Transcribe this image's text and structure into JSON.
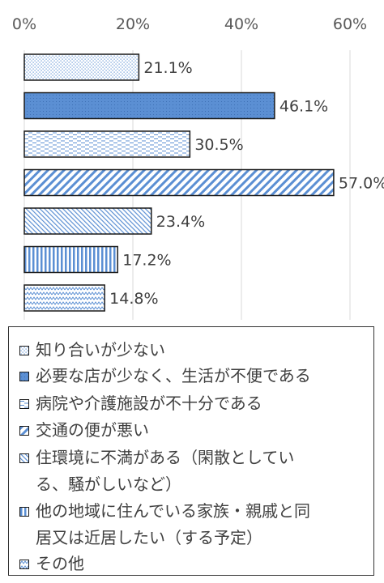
{
  "chart_data": {
    "type": "bar",
    "orientation": "horizontal",
    "x_ticks": [
      "0%",
      "20%",
      "40%",
      "60%"
    ],
    "xlim": [
      0,
      65
    ],
    "grid": true,
    "legend_position": "bottom",
    "categories": [
      "知り合いが少ない",
      "必要な店が少なく、生活が不便である",
      "病院や介護施設が不十分である",
      "交通の便が悪い",
      "住環境に不満がある（閑散としている、騒がしいなど）",
      "他の地域に住んでいる家族・親戚と同居又は近居したい（する予定）",
      "その他"
    ],
    "values": [
      21.1,
      46.1,
      30.5,
      57.0,
      23.4,
      17.2,
      14.8
    ],
    "value_labels": [
      "21.1%",
      "46.1%",
      "30.5%",
      "57.0%",
      "23.4%",
      "17.2%",
      "14.8%"
    ],
    "patterns": [
      "dots",
      "solid-blue",
      "dashes",
      "wide-diagonal",
      "thin-diagonal",
      "vertical",
      "waves"
    ],
    "colors": {
      "bar_fill": "#5b8fd3",
      "bar_border": "#1a1a1a",
      "grid": "#d9d9d9"
    }
  },
  "legend": [
    {
      "lines": [
        "知り合いが少ない"
      ]
    },
    {
      "lines": [
        "必要な店が少なく、生活が不便である"
      ]
    },
    {
      "lines": [
        "病院や介護施設が不十分である"
      ]
    },
    {
      "lines": [
        "交通の便が悪い"
      ]
    },
    {
      "lines": [
        "住環境に不満がある（閑散としてい",
        "る、騒がしいなど）"
      ]
    },
    {
      "lines": [
        "他の地域に住んでいる家族・親戚と同",
        "居又は近居したい（する予定）"
      ]
    },
    {
      "lines": [
        "その他"
      ]
    }
  ]
}
